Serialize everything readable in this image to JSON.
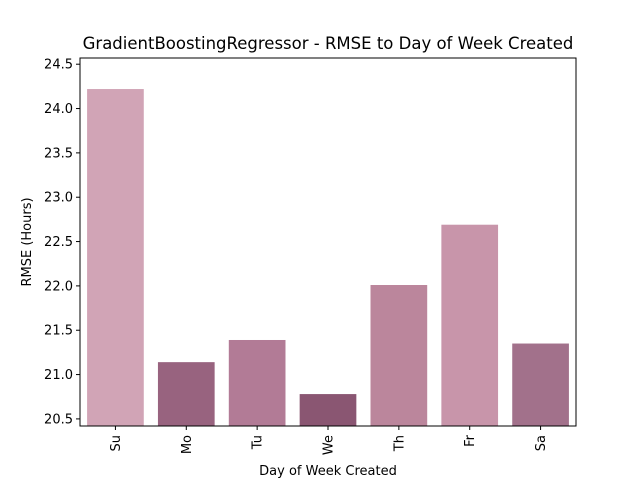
{
  "chart_data": {
    "type": "bar",
    "title": "GradientBoostingRegressor - RMSE to Day of Week Created",
    "xlabel": "Day of Week Created",
    "ylabel": "RMSE (Hours)",
    "categories": [
      "Su",
      "Mo",
      "Tu",
      "We",
      "Th",
      "Fr",
      "Sa"
    ],
    "values": [
      24.22,
      21.14,
      21.39,
      20.78,
      22.01,
      22.69,
      21.35
    ],
    "colors": [
      "#d1a4b6",
      "#98637f",
      "#b27b96",
      "#8a5672",
      "#bb869c",
      "#c895aa",
      "#a2718b"
    ],
    "ylim": [
      20.42,
      24.57
    ],
    "yticks": [
      20.5,
      21.0,
      21.5,
      22.0,
      22.5,
      23.0,
      23.5,
      24.0,
      24.5
    ],
    "ytick_labels": [
      "20.5",
      "21.0",
      "21.5",
      "22.0",
      "22.5",
      "23.0",
      "23.5",
      "24.0",
      "24.5"
    ],
    "x_tick_rotation": 90,
    "grid": false,
    "legend": "none"
  }
}
